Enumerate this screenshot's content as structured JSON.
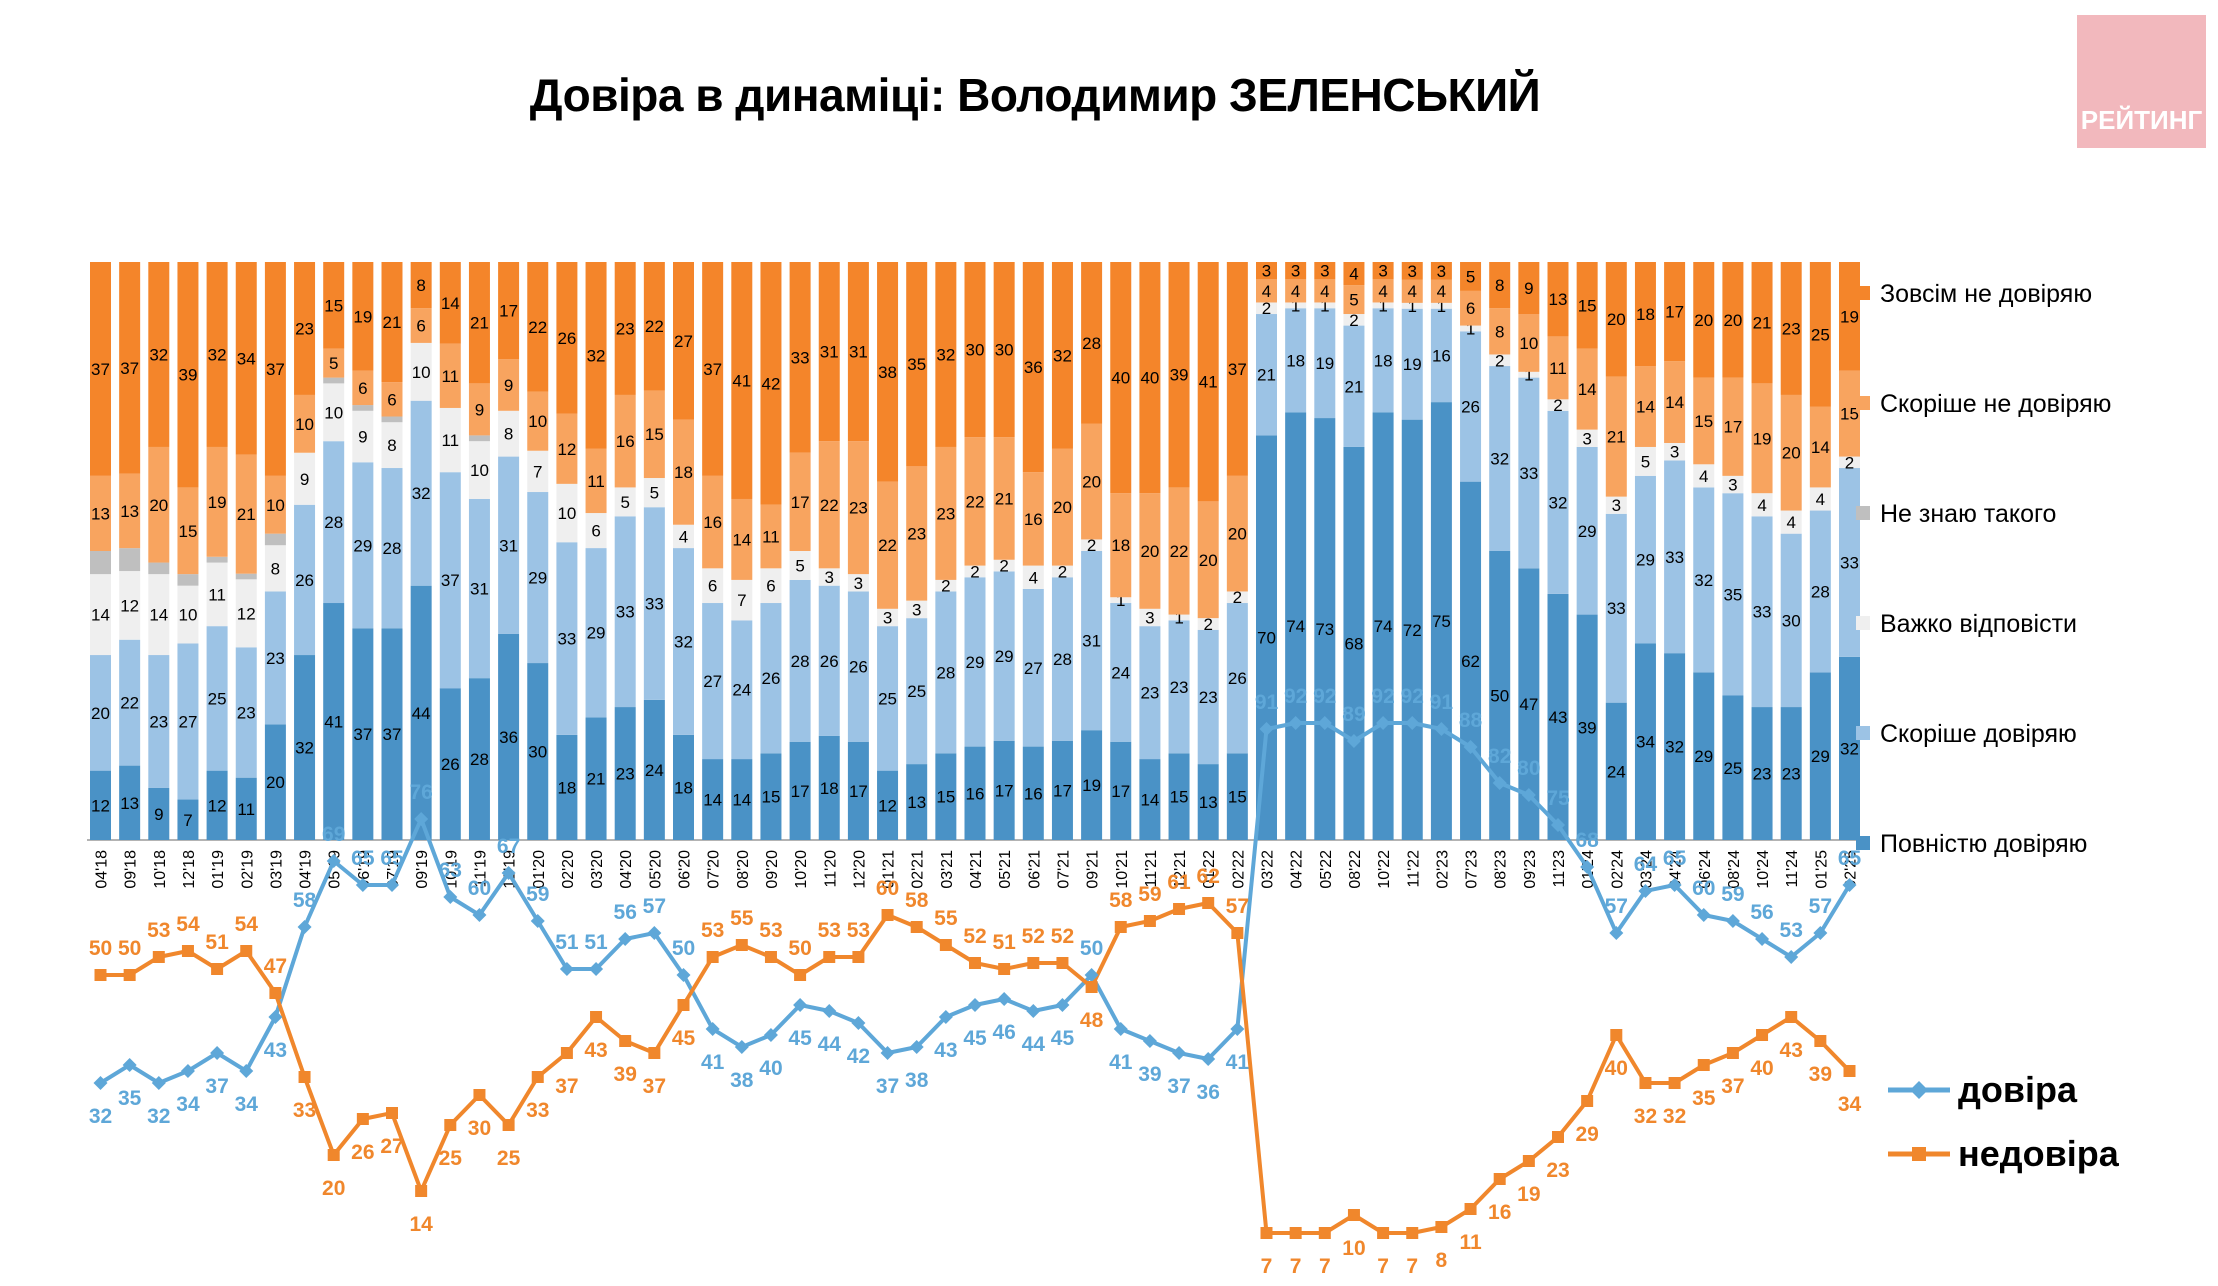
{
  "title": "Довіра в динаміці: Володимир ЗЕЛЕНСЬКИЙ",
  "brand": "РЕЙТИНГ",
  "colors": {
    "full_distrust": "#f4852a",
    "somewhat_distrust": "#f8a45f",
    "dont_know": "#bfbfbf",
    "hard_to_say": "#efefef",
    "somewhat_trust": "#9cc3e5",
    "full_trust": "#4a92c6",
    "trust_line": "#5ea7d8",
    "distrust_line": "#f0872c"
  },
  "chart_data": [
    {
      "type": "bar",
      "stacked": true,
      "categories": [
        "04'18",
        "09'18",
        "10'18",
        "12'18",
        "01'19",
        "02'19",
        "03'19",
        "04'19",
        "05'19",
        "06'19",
        "07'19",
        "09'19",
        "10'19",
        "11'19",
        "12'19",
        "01'20",
        "02'20",
        "03'20",
        "04'20",
        "05'20",
        "06'20",
        "07'20",
        "08'20",
        "09'20",
        "10'20",
        "11'20",
        "12'20",
        "01'21",
        "02'21",
        "03'21",
        "04'21",
        "05'21",
        "06'21",
        "07'21",
        "09'21",
        "10'21",
        "11'21",
        "12'21",
        "01'22",
        "02'22",
        "03'22",
        "04'22",
        "05'22",
        "08'22",
        "10'22",
        "11'22",
        "02'23",
        "07'23",
        "08'23",
        "09'23",
        "11'23",
        "01'24",
        "02'24",
        "03'24",
        "04'24",
        "06'24",
        "08'24",
        "10'24",
        "11'24",
        "01'25",
        "02'25"
      ],
      "series": [
        {
          "name": "Повністю довіряю",
          "values": [
            12,
            13,
            9,
            7,
            12,
            11,
            20,
            32,
            41,
            37,
            37,
            44,
            26,
            28,
            36,
            30,
            18,
            21,
            23,
            24,
            18,
            14,
            14,
            15,
            17,
            18,
            17,
            12,
            13,
            15,
            16,
            17,
            16,
            17,
            19,
            17,
            14,
            15,
            13,
            15,
            70,
            74,
            73,
            68,
            74,
            72,
            75,
            62,
            50,
            47,
            43,
            39,
            24,
            34,
            32,
            29,
            25,
            23,
            23,
            29,
            32
          ]
        },
        {
          "name": "Скоріше довіряю",
          "values": [
            20,
            22,
            23,
            27,
            25,
            23,
            23,
            26,
            28,
            29,
            28,
            32,
            37,
            31,
            31,
            29,
            33,
            29,
            33,
            33,
            32,
            27,
            24,
            26,
            28,
            26,
            26,
            25,
            25,
            28,
            29,
            29,
            27,
            28,
            31,
            24,
            23,
            23,
            23,
            26,
            21,
            18,
            19,
            21,
            18,
            19,
            16,
            26,
            32,
            33,
            32,
            29,
            33,
            29,
            33,
            32,
            35,
            33,
            30,
            28,
            33
          ]
        },
        {
          "name": "Важко відповісти",
          "values": [
            14,
            12,
            14,
            10,
            11,
            12,
            8,
            9,
            10,
            9,
            8,
            10,
            11,
            10,
            8,
            7,
            10,
            6,
            5,
            5,
            4,
            6,
            7,
            6,
            5,
            3,
            3,
            3,
            3,
            2,
            2,
            2,
            4,
            2,
            2,
            1,
            3,
            1,
            2,
            2,
            2,
            1,
            1,
            2,
            1,
            1,
            1,
            1,
            2,
            1,
            2,
            3,
            3,
            5,
            3,
            4,
            3,
            4,
            4,
            4,
            2
          ]
        },
        {
          "name": "Не знаю такого",
          "values": [
            4,
            4,
            2,
            2,
            1,
            1,
            2,
            0,
            1,
            1,
            1,
            0,
            0,
            1,
            0,
            0,
            0,
            0,
            0,
            0,
            0,
            0,
            0,
            0,
            0,
            0,
            0,
            0,
            0,
            0,
            0,
            0,
            0,
            0,
            0,
            0,
            0,
            0,
            0,
            0,
            0,
            0,
            0,
            0,
            0,
            0,
            0,
            0,
            0,
            0,
            0,
            0,
            0,
            0,
            0,
            0,
            0,
            0,
            0,
            0,
            0
          ]
        },
        {
          "name": "Скоріше не довіряю",
          "values": [
            13,
            13,
            20,
            15,
            19,
            21,
            10,
            10,
            5,
            6,
            6,
            6,
            11,
            9,
            9,
            10,
            12,
            11,
            16,
            15,
            18,
            16,
            14,
            11,
            17,
            22,
            23,
            22,
            23,
            23,
            22,
            21,
            16,
            20,
            20,
            18,
            20,
            22,
            20,
            20,
            4,
            4,
            4,
            5,
            4,
            4,
            4,
            6,
            8,
            10,
            11,
            14,
            21,
            14,
            14,
            15,
            17,
            19,
            20,
            14,
            15
          ]
        },
        {
          "name": "Зовсім не довіряю",
          "values": [
            37,
            37,
            32,
            39,
            32,
            34,
            37,
            23,
            15,
            19,
            21,
            8,
            14,
            21,
            17,
            22,
            26,
            32,
            23,
            22,
            27,
            37,
            41,
            42,
            33,
            31,
            31,
            38,
            35,
            32,
            30,
            30,
            36,
            32,
            28,
            40,
            40,
            39,
            41,
            37,
            3,
            3,
            3,
            4,
            3,
            3,
            3,
            5,
            8,
            9,
            13,
            15,
            20,
            18,
            17,
            20,
            20,
            21,
            23,
            25,
            19
          ]
        }
      ],
      "legend": [
        "Зовсім не довіряю",
        "Скоріше не довіряю",
        "Не знаю такого",
        "Важко відповісти",
        "Скоріше довіряю",
        "Повністю довіряю"
      ],
      "legend_position": "right"
    },
    {
      "type": "line",
      "series": [
        {
          "name": "довіра",
          "values": [
            32,
            35,
            32,
            34,
            37,
            34,
            43,
            58,
            69,
            65,
            65,
            76,
            63,
            60,
            67,
            59,
            51,
            51,
            56,
            57,
            50,
            41,
            38,
            40,
            45,
            44,
            42,
            37,
            38,
            43,
            45,
            46,
            44,
            45,
            50,
            41,
            39,
            37,
            36,
            41,
            91,
            92,
            92,
            89,
            92,
            92,
            91,
            88,
            82,
            80,
            75,
            68,
            57,
            64,
            65,
            60,
            59,
            56,
            53,
            57,
            65
          ]
        },
        {
          "name": "недовіра",
          "values": [
            50,
            50,
            53,
            54,
            51,
            54,
            47,
            33,
            20,
            26,
            27,
            14,
            25,
            30,
            25,
            33,
            37,
            43,
            39,
            37,
            45,
            53,
            55,
            53,
            50,
            53,
            53,
            60,
            58,
            55,
            52,
            51,
            52,
            52,
            48,
            58,
            59,
            61,
            62,
            57,
            7,
            7,
            7,
            10,
            7,
            7,
            8,
            11,
            16,
            19,
            23,
            29,
            40,
            32,
            32,
            35,
            37,
            40,
            43,
            39,
            34
          ]
        }
      ],
      "legend_position": "right"
    }
  ]
}
